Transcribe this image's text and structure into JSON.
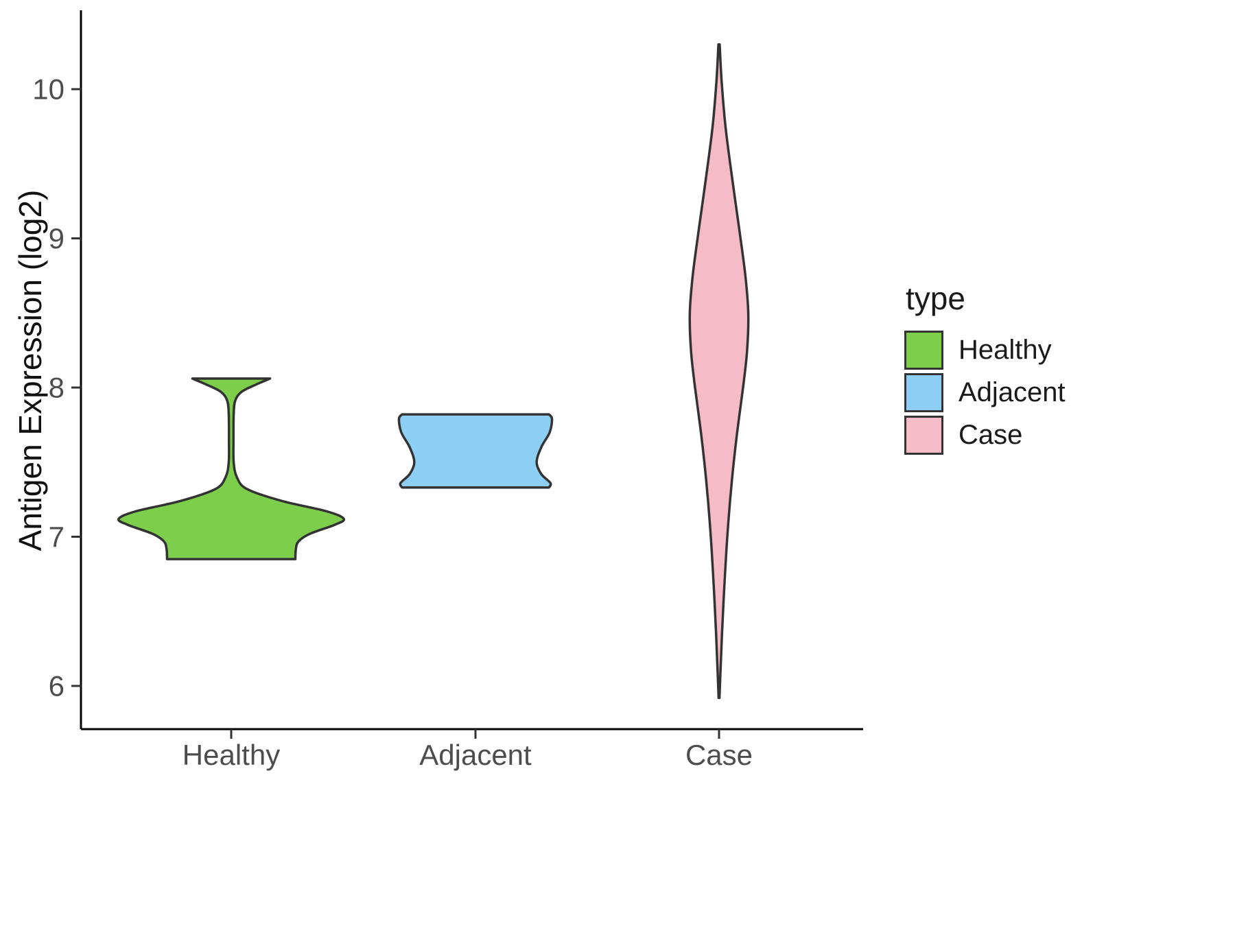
{
  "chart_data": {
    "type": "violin",
    "title": "",
    "ylabel": "Antigen Expression (log2)",
    "xlabel": "",
    "y_ticks": [
      6,
      7,
      8,
      9,
      10
    ],
    "y_range_shown": [
      5.7,
      10.5
    ],
    "categories": [
      "Healthy",
      "Adjacent",
      "Case"
    ],
    "legend": {
      "title": "type",
      "entries": [
        {
          "label": "Healthy",
          "color": "#7CCE4B"
        },
        {
          "label": "Adjacent",
          "color": "#8DCFF4"
        },
        {
          "label": "Case",
          "color": "#F5BCC8"
        }
      ]
    },
    "series": [
      {
        "name": "Healthy",
        "color": "#7CCE4B",
        "value_range": [
          6.85,
          8.06
        ],
        "peak_density_at": 7.12,
        "relative_width": 1.0,
        "profile": [
          [
            8.06,
            0.345
          ],
          [
            8.02,
            0.22
          ],
          [
            7.97,
            0.09
          ],
          [
            7.91,
            0.035
          ],
          [
            7.82,
            0.022
          ],
          [
            7.65,
            0.02
          ],
          [
            7.5,
            0.022
          ],
          [
            7.4,
            0.05
          ],
          [
            7.32,
            0.14
          ],
          [
            7.24,
            0.45
          ],
          [
            7.17,
            0.85
          ],
          [
            7.12,
            1.0
          ],
          [
            7.08,
            0.92
          ],
          [
            7.02,
            0.7
          ],
          [
            6.97,
            0.6
          ],
          [
            6.92,
            0.575
          ],
          [
            6.85,
            0.57
          ]
        ]
      },
      {
        "name": "Adjacent",
        "color": "#8DCFF4",
        "value_range": [
          7.33,
          7.82
        ],
        "peak_density_at": 7.79,
        "relative_width": 0.68,
        "profile": [
          [
            7.82,
            0.96
          ],
          [
            7.79,
            1.0
          ],
          [
            7.7,
            0.97
          ],
          [
            7.6,
            0.86
          ],
          [
            7.5,
            0.8
          ],
          [
            7.42,
            0.86
          ],
          [
            7.36,
            0.98
          ],
          [
            7.33,
            0.96
          ]
        ]
      },
      {
        "name": "Case",
        "color": "#F5BCC8",
        "value_range": [
          5.92,
          10.3
        ],
        "peak_density_at": 8.5,
        "relative_width": 0.26,
        "profile": [
          [
            10.3,
            0.02
          ],
          [
            10.05,
            0.09
          ],
          [
            9.75,
            0.22
          ],
          [
            9.4,
            0.45
          ],
          [
            9.05,
            0.7
          ],
          [
            8.75,
            0.9
          ],
          [
            8.5,
            1.0
          ],
          [
            8.25,
            0.96
          ],
          [
            8.0,
            0.82
          ],
          [
            7.7,
            0.62
          ],
          [
            7.4,
            0.45
          ],
          [
            7.05,
            0.3
          ],
          [
            6.7,
            0.19
          ],
          [
            6.35,
            0.1
          ],
          [
            6.1,
            0.05
          ],
          [
            5.92,
            0.015
          ]
        ]
      }
    ],
    "style": {
      "outline_color": "#333333",
      "axis_color": "#000000",
      "tick_label_color": "#4D4D4D",
      "background": "#FFFFFF"
    }
  }
}
